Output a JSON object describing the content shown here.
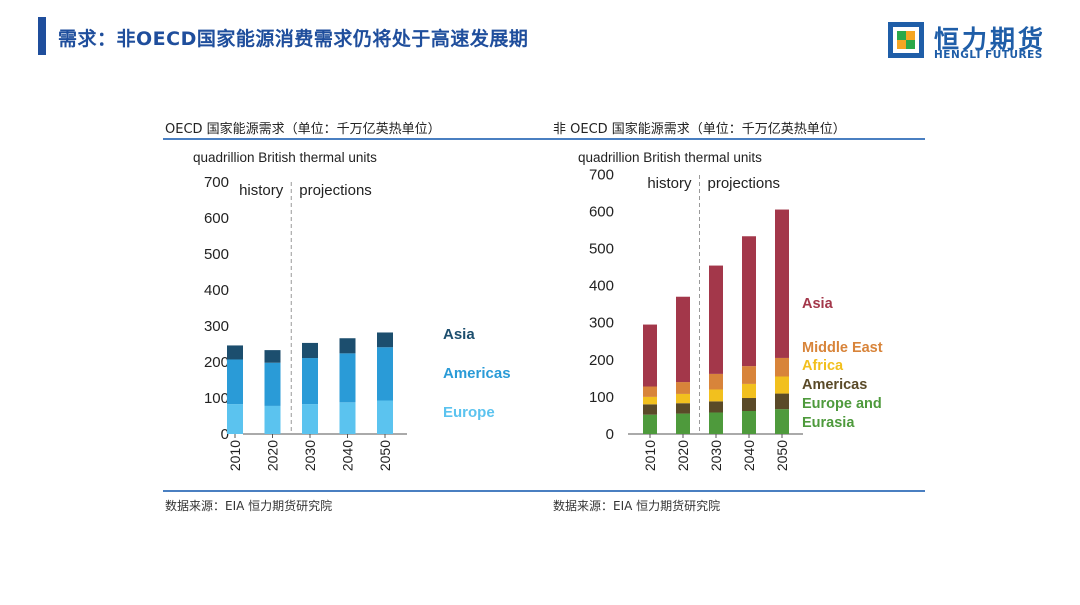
{
  "header": {
    "title": "需求：非OECD国家能源消费需求仍将处于高速发展期",
    "logo_cn": "恒力期货",
    "logo_en": "HENGLI FUTURES"
  },
  "colors": {
    "brand": "#1f4e9c",
    "rule": "#4a7fc1"
  },
  "panels": [
    {
      "title": "OECD 国家能源需求（单位：千万亿英热单位）",
      "source": "数据来源：EIA 恒力期货研究院"
    },
    {
      "title": "非 OECD 国家能源需求（单位：千万亿英热单位）",
      "source": "数据来源：EIA 恒力期货研究院"
    }
  ],
  "chart_data": [
    {
      "type": "bar",
      "stacked": true,
      "title": "OECD 国家能源需求（单位：千万亿英热单位）",
      "ylabel": "quadrillion British thermal units",
      "ylim": [
        0,
        700
      ],
      "yticks": [
        0,
        100,
        200,
        300,
        400,
        500,
        600,
        700
      ],
      "categories": [
        "2010",
        "2020",
        "2030",
        "2040",
        "2050"
      ],
      "annotations": [
        "history",
        "projections"
      ],
      "series": [
        {
          "name": "Europe",
          "color": "#5bc3ef",
          "values": [
            83,
            78,
            83,
            88,
            93
          ]
        },
        {
          "name": "Americas",
          "color": "#2a9bd7",
          "values": [
            124,
            120,
            128,
            136,
            148
          ]
        },
        {
          "name": "Asia",
          "color": "#1c4e6e",
          "values": [
            39,
            35,
            42,
            42,
            41
          ]
        }
      ]
    },
    {
      "type": "bar",
      "stacked": true,
      "title": "非 OECD 国家能源需求（单位：千万亿英热单位）",
      "ylabel": "quadrillion British thermal units",
      "ylim": [
        0,
        700
      ],
      "yticks": [
        0,
        100,
        200,
        300,
        400,
        500,
        600,
        700
      ],
      "categories": [
        "2010",
        "2020",
        "2030",
        "2040",
        "2050"
      ],
      "annotations": [
        "history",
        "projections"
      ],
      "series": [
        {
          "name": "Europe and Eurasia",
          "legend_lines": [
            "Europe and",
            "Eurasia"
          ],
          "color": "#4e9a3c",
          "values": [
            52,
            55,
            58,
            62,
            67
          ]
        },
        {
          "name": "Americas",
          "color": "#5a4a28",
          "values": [
            28,
            28,
            30,
            35,
            42
          ]
        },
        {
          "name": "Africa",
          "color": "#f2c01e",
          "values": [
            20,
            25,
            32,
            38,
            46
          ]
        },
        {
          "name": "Middle East",
          "color": "#d8843a",
          "values": [
            28,
            32,
            42,
            48,
            50
          ]
        },
        {
          "name": "Asia",
          "color": "#a3374a",
          "values": [
            167,
            230,
            292,
            350,
            400
          ]
        }
      ]
    }
  ]
}
